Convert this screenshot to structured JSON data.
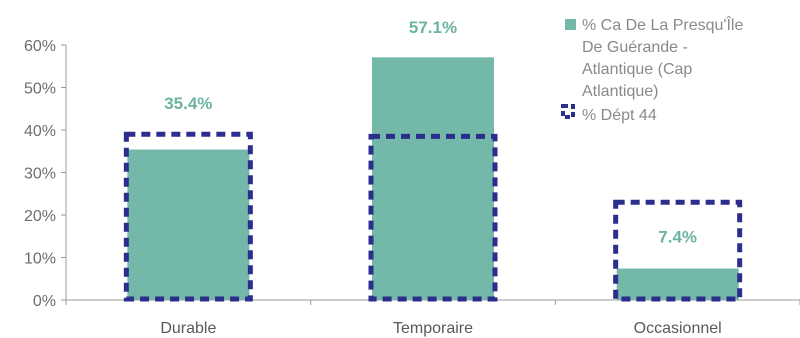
{
  "chart_data": {
    "type": "bar",
    "categories": [
      "Durable",
      "Temporaire",
      "Occasionnel"
    ],
    "series": [
      {
        "name": "% Ca De La Presqu'Île De Guérande - Atlantique (Cap Atlantique)",
        "legend_lines": [
          "% Ca De La Presqu'Île",
          "De Guérande -",
          "Atlantique (Cap",
          "Atlantique)"
        ],
        "values": [
          35.4,
          57.1,
          7.4
        ],
        "data_labels": [
          "35.4%",
          "57.1%",
          "7.4%"
        ],
        "color": "#74b8a9",
        "label_color": "#6cb3a2"
      },
      {
        "name": "% Dépt 44",
        "legend_lines": [
          "% Dépt 44"
        ],
        "values": [
          39,
          38.5,
          23
        ],
        "color": "#2b2e8c",
        "style": "dashed-outline"
      }
    ],
    "y_ticks": [
      "0%",
      "10%",
      "20%",
      "30%",
      "40%",
      "50%",
      "60%"
    ],
    "ylim": [
      0,
      60
    ],
    "grid": false,
    "legend_position": "top-right"
  }
}
